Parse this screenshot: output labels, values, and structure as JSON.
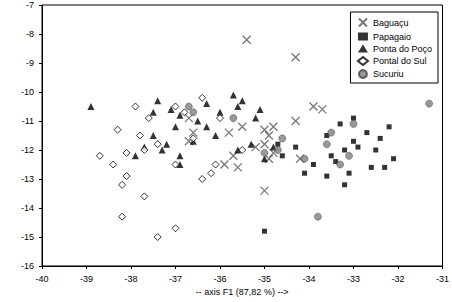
{
  "chart_data": {
    "type": "scatter",
    "x_label": "-- axis F1 (87,82 %) -->",
    "xlim": [
      -40,
      -31
    ],
    "xticks": [
      -40,
      -39,
      -38,
      -37,
      -36,
      -35,
      -34,
      -33,
      -32,
      -31
    ],
    "ylim": [
      -16,
      -7
    ],
    "yticks": [
      -16,
      -15,
      -14,
      -13,
      -12,
      -11,
      -10,
      -9,
      -8,
      -7
    ],
    "grid": false,
    "legend": "top-right",
    "series": [
      {
        "name": "Baguaçu",
        "marker": "x",
        "color": "#555555",
        "x": [
          -35.4,
          -34.3,
          -33.9,
          -33.7,
          -34.3,
          -36.7,
          -36.6,
          -35.8,
          -35.5,
          -35.0,
          -34.9,
          -34.8,
          -35.0,
          -35.2,
          -34.8,
          -34.9,
          -34.2,
          -35.7,
          -35.9,
          -35.6,
          -35.0,
          -36.7
        ],
        "values": [
          -8.2,
          -8.8,
          -10.5,
          -10.6,
          -11.0,
          -10.9,
          -11.4,
          -11.4,
          -11.2,
          -11.3,
          -11.5,
          -11.2,
          -11.8,
          -11.9,
          -12.1,
          -12.3,
          -12.3,
          -12.2,
          -12.5,
          -12.6,
          -13.4,
          -11.7
        ]
      },
      {
        "name": "Papagaio",
        "marker": "square",
        "color": "#000000",
        "x": [
          -33.0,
          -33.3,
          -32.2,
          -32.7,
          -33.6,
          -32.4,
          -33.0,
          -34.3,
          -32.9,
          -33.2,
          -32.5,
          -34.6,
          -33.5,
          -32.1,
          -33.9,
          -33.4,
          -32.6,
          -33.1,
          -32.3,
          -33.2,
          -35.0,
          -34.7,
          -34.1,
          -33.6
        ],
        "values": [
          -10.9,
          -11.1,
          -11.2,
          -11.4,
          -11.5,
          -11.6,
          -11.7,
          -11.9,
          -11.9,
          -12.0,
          -12.0,
          -12.2,
          -12.2,
          -12.3,
          -12.5,
          -12.4,
          -12.6,
          -12.8,
          -12.6,
          -13.2,
          -14.8,
          -11.8,
          -12.8,
          -12.9
        ]
      },
      {
        "name": "Ponta do Poço",
        "marker": "triangle",
        "color": "#000000",
        "x": [
          -38.9,
          -37.4,
          -36.9,
          -37.5,
          -37.1,
          -36.3,
          -35.7,
          -35.6,
          -35.1,
          -35.2,
          -36.0,
          -36.5,
          -36.3,
          -37.5,
          -37.2,
          -37.7,
          -36.1,
          -36.6,
          -37.9,
          -37.3,
          -36.9,
          -35.6,
          -35.3,
          -34.8,
          -36.9,
          -35.0,
          -35.5,
          -37.0
        ],
        "values": [
          -10.5,
          -10.3,
          -10.8,
          -10.7,
          -10.6,
          -10.4,
          -10.1,
          -10.5,
          -10.6,
          -10.9,
          -10.7,
          -11.0,
          -11.2,
          -11.5,
          -11.8,
          -11.9,
          -11.5,
          -11.7,
          -12.2,
          -12.0,
          -12.2,
          -12.0,
          -11.8,
          -11.9,
          -12.5,
          -12.3,
          -10.3,
          -11.2
        ]
      },
      {
        "name": "Pontal do Sul",
        "marker": "diamond_open",
        "color": "#000000",
        "x": [
          -38.3,
          -37.9,
          -37.6,
          -37.0,
          -36.8,
          -36.4,
          -36.0,
          -37.8,
          -37.7,
          -37.4,
          -38.1,
          -38.7,
          -38.4,
          -38.1,
          -38.2,
          -37.7,
          -36.4,
          -36.1,
          -35.5,
          -37.0,
          -36.6,
          -38.2,
          -37.0,
          -37.4,
          -36.2
        ],
        "values": [
          -11.3,
          -10.5,
          -10.9,
          -10.5,
          -10.7,
          -10.2,
          -10.9,
          -11.5,
          -12.0,
          -11.8,
          -12.1,
          -12.2,
          -12.5,
          -12.9,
          -13.2,
          -13.6,
          -13.0,
          -12.5,
          -12.0,
          -12.5,
          -11.6,
          -14.3,
          -14.7,
          -15.0,
          -12.8
        ]
      },
      {
        "name": "Sucuriu",
        "marker": "circle",
        "color": "#808080",
        "x": [
          -36.7,
          -36.6,
          -35.7,
          -34.6,
          -34.7,
          -33.6,
          -33.0,
          -33.5,
          -34.1,
          -33.1,
          -33.3,
          -33.8,
          -31.3,
          -35.0
        ],
        "values": [
          -10.5,
          -10.7,
          -10.9,
          -11.6,
          -12.0,
          -11.8,
          -11.1,
          -11.4,
          -12.3,
          -12.2,
          -12.5,
          -14.3,
          -10.4,
          -12.1
        ]
      }
    ]
  }
}
